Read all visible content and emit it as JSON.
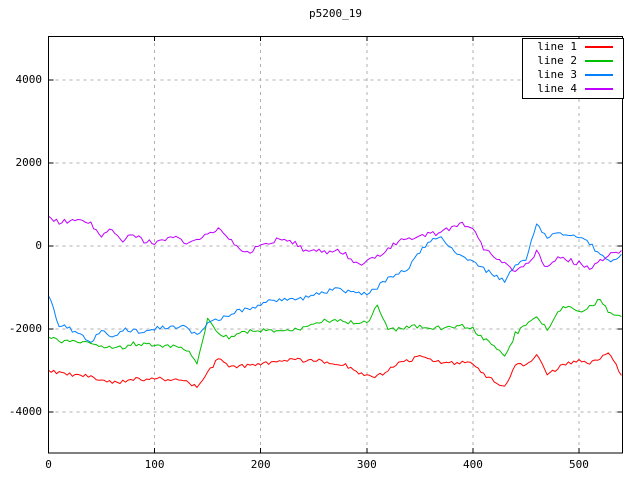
{
  "chart_data": {
    "type": "line",
    "title": "p5200_19",
    "xlabel": "",
    "ylabel": "",
    "xlim": [
      0,
      541
    ],
    "ylim": [
      -4990,
      5060
    ],
    "x_ticks": [
      0,
      100,
      200,
      300,
      400,
      500
    ],
    "y_ticks": [
      -4000,
      -2000,
      0,
      2000,
      4000
    ],
    "grid": true,
    "grid_style": "dashed",
    "legend_position": "top-right",
    "background_color": "#ffffff",
    "axis_color": "#000000",
    "grid_color": "#b0b0b0",
    "noise_amplitudes": [
      48,
      52,
      52,
      62
    ],
    "seed": 9,
    "x": [
      0,
      10,
      20,
      30,
      40,
      50,
      60,
      70,
      80,
      90,
      100,
      110,
      120,
      130,
      140,
      150,
      160,
      170,
      180,
      190,
      200,
      210,
      220,
      230,
      240,
      250,
      260,
      270,
      280,
      290,
      300,
      310,
      320,
      330,
      340,
      350,
      360,
      370,
      380,
      390,
      400,
      410,
      420,
      430,
      440,
      450,
      460,
      470,
      480,
      490,
      500,
      510,
      520,
      530,
      540
    ],
    "series": [
      {
        "name": "line 1",
        "color": "#ff0000",
        "values": [
          -3000,
          -3060,
          -3100,
          -3120,
          -3150,
          -3270,
          -3280,
          -3270,
          -3200,
          -3210,
          -3190,
          -3220,
          -3230,
          -3260,
          -3420,
          -3080,
          -2680,
          -2940,
          -2900,
          -2890,
          -2850,
          -2800,
          -2760,
          -2740,
          -2760,
          -2750,
          -2780,
          -2820,
          -2870,
          -3050,
          -3150,
          -3150,
          -3000,
          -2830,
          -2750,
          -2680,
          -2760,
          -2800,
          -2820,
          -2800,
          -2820,
          -3100,
          -3230,
          -3420,
          -2850,
          -2900,
          -2590,
          -3100,
          -2950,
          -2820,
          -2750,
          -2850,
          -2700,
          -2600,
          -3120
        ]
      },
      {
        "name": "line 2",
        "color": "#00c000",
        "values": [
          -2200,
          -2280,
          -2300,
          -2320,
          -2350,
          -2450,
          -2460,
          -2440,
          -2360,
          -2380,
          -2400,
          -2420,
          -2440,
          -2500,
          -2840,
          -1750,
          -2100,
          -2230,
          -2100,
          -2060,
          -2040,
          -2050,
          -2000,
          -2000,
          -1980,
          -1890,
          -1800,
          -1780,
          -1820,
          -1850,
          -1860,
          -1440,
          -2030,
          -2000,
          -1950,
          -1940,
          -2000,
          -1970,
          -1950,
          -1930,
          -2000,
          -2230,
          -2400,
          -2700,
          -2120,
          -1900,
          -1670,
          -2030,
          -1550,
          -1450,
          -1580,
          -1470,
          -1280,
          -1650,
          -1700
        ]
      },
      {
        "name": "line 3",
        "color": "#0080ff",
        "values": [
          -1200,
          -1900,
          -2000,
          -2150,
          -2300,
          -2050,
          -2200,
          -2000,
          -2040,
          -2080,
          -1980,
          -1960,
          -1980,
          -1950,
          -2160,
          -1870,
          -1760,
          -1660,
          -1560,
          -1500,
          -1440,
          -1300,
          -1320,
          -1260,
          -1280,
          -1160,
          -1130,
          -1000,
          -1080,
          -1120,
          -1130,
          -990,
          -800,
          -660,
          -510,
          -150,
          150,
          180,
          -60,
          -260,
          -330,
          -560,
          -700,
          -830,
          -450,
          -330,
          510,
          230,
          300,
          250,
          190,
          60,
          -230,
          -420,
          -200
        ]
      },
      {
        "name": "line 4",
        "color": "#c000ff",
        "values": [
          720,
          570,
          600,
          630,
          520,
          190,
          420,
          150,
          300,
          120,
          60,
          140,
          230,
          0,
          200,
          260,
          380,
          180,
          -120,
          -170,
          60,
          90,
          180,
          90,
          -70,
          -100,
          -140,
          -120,
          -200,
          -420,
          -390,
          -240,
          -60,
          90,
          200,
          240,
          280,
          330,
          420,
          530,
          420,
          -80,
          -260,
          -420,
          -650,
          -430,
          -150,
          -540,
          -260,
          -340,
          -420,
          -580,
          -330,
          -200,
          -110
        ]
      }
    ]
  }
}
